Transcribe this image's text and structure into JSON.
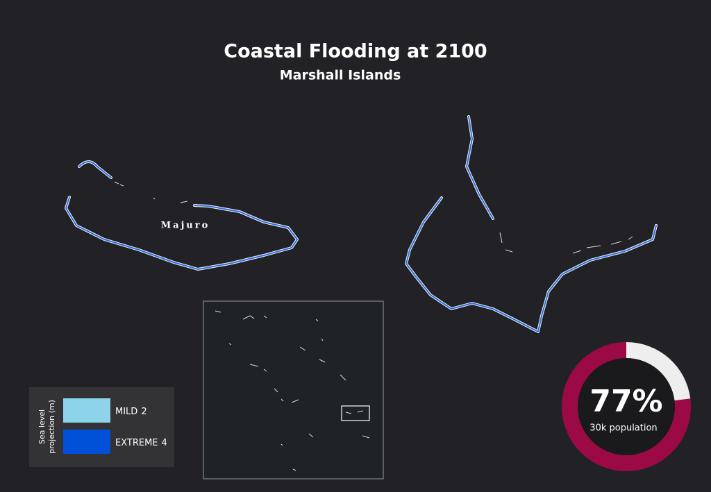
{
  "header": {
    "title": "Coastal Flooding at 2100",
    "subtitle": "Marshall Islands"
  },
  "map": {
    "label": "Majuro"
  },
  "legend": {
    "title": [
      "Sea level",
      "projection (m)"
    ],
    "items": [
      {
        "name": "MILD",
        "value": 2,
        "color": "#8dd3ea"
      },
      {
        "name": "EXTREME",
        "value": 4,
        "color": "#0050d8"
      }
    ]
  },
  "donut": {
    "value": 77,
    "value_label": "77%",
    "caption": "30k population",
    "color": "#9b0a44",
    "rest_color": "#eeeeee"
  }
}
